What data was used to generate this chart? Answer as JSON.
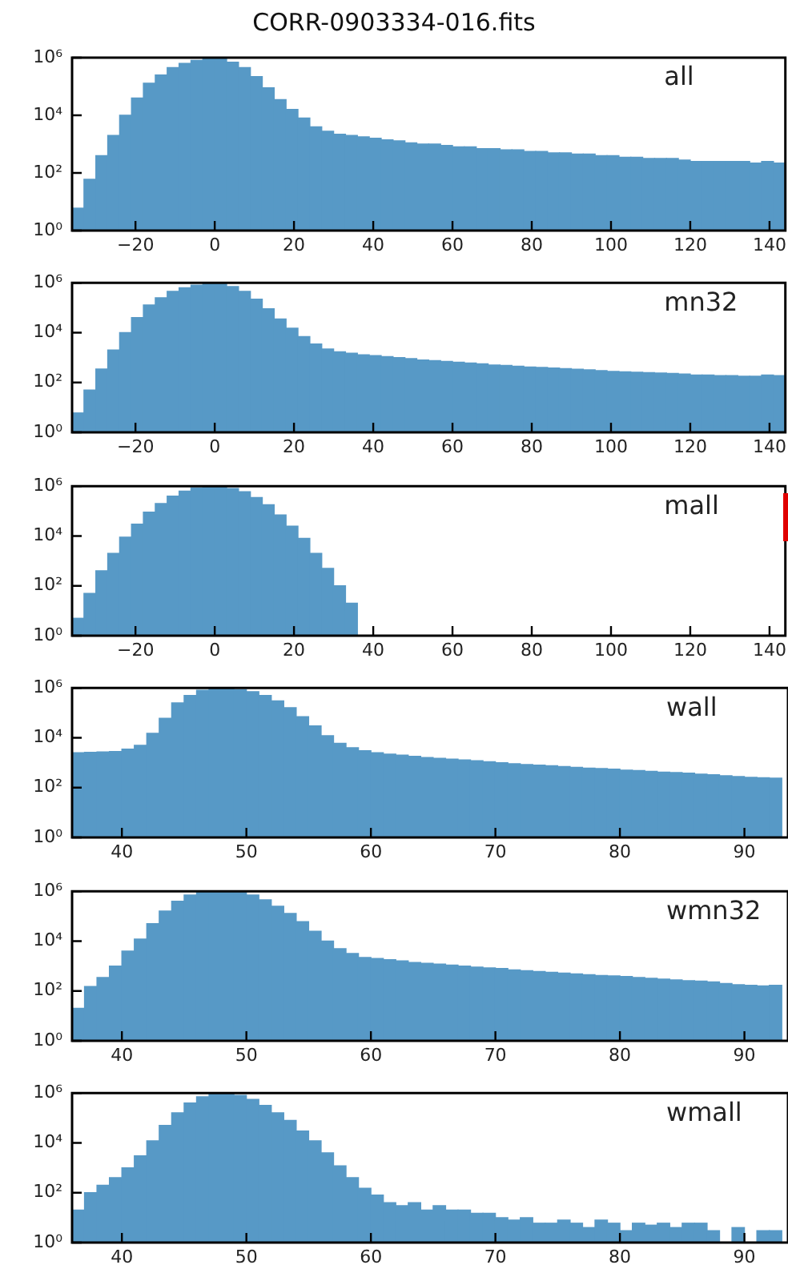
{
  "chart_data": [
    {
      "type": "histogram",
      "title": "CORR-0903334-016.fits",
      "annotations": [
        "all"
      ],
      "color": "#5799c6",
      "log": "y",
      "bins": [
        -36,
        -33,
        -30,
        -27,
        -24,
        -21,
        -18,
        -15,
        -12,
        -9,
        -6,
        -3,
        0,
        3,
        6,
        9,
        12,
        15,
        18,
        21,
        24,
        27,
        30,
        33,
        36,
        39,
        42,
        45,
        48,
        51,
        54,
        57,
        60,
        63,
        66,
        69,
        72,
        75,
        78,
        81,
        84,
        87,
        90,
        93,
        96,
        99,
        102,
        105,
        108,
        111,
        114,
        117,
        120,
        123,
        126,
        129,
        132,
        135,
        138,
        141,
        144
      ],
      "values": [
        6,
        60,
        400,
        2000,
        10000,
        40000,
        130000,
        250000,
        450000,
        630000,
        800000,
        950000,
        900000,
        700000,
        450000,
        220000,
        90000,
        35000,
        16000,
        8000,
        4000,
        2800,
        2200,
        2000,
        1800,
        1600,
        1400,
        1300,
        1100,
        1000,
        1000,
        900,
        800,
        800,
        700,
        700,
        630,
        630,
        560,
        560,
        500,
        500,
        450,
        450,
        400,
        400,
        350,
        350,
        320,
        320,
        320,
        280,
        250,
        250,
        250,
        250,
        250,
        220,
        250,
        220
      ],
      "xlim": [
        -36,
        144
      ],
      "xticks": [
        -20,
        0,
        20,
        40,
        60,
        80,
        100,
        120,
        140
      ],
      "ylim": [
        1,
        1000000
      ],
      "yticks": [
        {
          "value": 1,
          "label": "10⁰"
        },
        {
          "value": 100,
          "label": "10²"
        },
        {
          "value": 10000,
          "label": "10⁴"
        },
        {
          "value": 1000000,
          "label": "10⁶"
        }
      ]
    },
    {
      "type": "histogram",
      "annotations": [
        "mn32"
      ],
      "color": "#5799c6",
      "log": "y",
      "bins": [
        -36,
        -33,
        -30,
        -27,
        -24,
        -21,
        -18,
        -15,
        -12,
        -9,
        -6,
        -3,
        0,
        3,
        6,
        9,
        12,
        15,
        18,
        21,
        24,
        27,
        30,
        33,
        36,
        39,
        42,
        45,
        48,
        51,
        54,
        57,
        60,
        63,
        66,
        69,
        72,
        75,
        78,
        81,
        84,
        87,
        90,
        93,
        96,
        99,
        102,
        105,
        108,
        111,
        114,
        117,
        120,
        123,
        126,
        129,
        132,
        135,
        138,
        141,
        144
      ],
      "values": [
        6,
        50,
        350,
        2000,
        10000,
        40000,
        130000,
        250000,
        450000,
        630000,
        800000,
        950000,
        900000,
        700000,
        450000,
        220000,
        90000,
        35000,
        15000,
        7000,
        3500,
        2200,
        1700,
        1500,
        1300,
        1200,
        1100,
        1000,
        900,
        800,
        750,
        700,
        650,
        600,
        560,
        500,
        480,
        450,
        420,
        400,
        380,
        360,
        340,
        320,
        300,
        280,
        270,
        260,
        250,
        240,
        230,
        220,
        200,
        200,
        190,
        190,
        180,
        180,
        200,
        190
      ],
      "xlim": [
        -36,
        144
      ],
      "xticks": [
        -20,
        0,
        20,
        40,
        60,
        80,
        100,
        120,
        140
      ],
      "ylim": [
        1,
        1000000
      ],
      "yticks": [
        {
          "value": 1,
          "label": "10⁰"
        },
        {
          "value": 100,
          "label": "10²"
        },
        {
          "value": 10000,
          "label": "10⁴"
        },
        {
          "value": 1000000,
          "label": "10⁶"
        }
      ]
    },
    {
      "type": "histogram",
      "annotations": [
        "mall"
      ],
      "color": "#5799c6",
      "log": "y",
      "bins": [
        -36,
        -33,
        -30,
        -27,
        -24,
        -21,
        -18,
        -15,
        -12,
        -9,
        -6,
        -3,
        0,
        3,
        6,
        9,
        12,
        15,
        18,
        21,
        24,
        27,
        30,
        33,
        36,
        39,
        42,
        45,
        48,
        51,
        54,
        57,
        60,
        63,
        66,
        69,
        72,
        75,
        78,
        81,
        84,
        87,
        90,
        93,
        96,
        99,
        102,
        105,
        108,
        111,
        114,
        117,
        120,
        123,
        126,
        129,
        132,
        135,
        138,
        141,
        144
      ],
      "values": [
        5,
        50,
        400,
        2000,
        9000,
        30000,
        90000,
        200000,
        400000,
        630000,
        850000,
        950000,
        950000,
        800000,
        600000,
        350000,
        180000,
        70000,
        25000,
        8000,
        2000,
        500,
        100,
        20,
        null,
        null,
        null,
        null,
        null,
        null,
        null,
        null,
        null,
        null,
        null,
        null,
        null,
        null,
        null,
        null,
        null,
        null,
        null,
        null,
        null,
        null,
        null,
        null,
        null,
        null,
        null,
        null,
        null,
        null,
        null,
        null,
        null,
        null,
        null,
        null
      ],
      "xlim": [
        -36,
        144
      ],
      "xticks": [
        -20,
        0,
        20,
        40,
        60,
        80,
        100,
        120,
        140
      ],
      "ylim": [
        1,
        1000000
      ],
      "yticks": [
        {
          "value": 1,
          "label": "10⁰"
        },
        {
          "value": 100,
          "label": "10²"
        },
        {
          "value": 10000,
          "label": "10⁴"
        },
        {
          "value": 1000000,
          "label": "10⁶"
        }
      ]
    },
    {
      "type": "histogram",
      "annotations": [
        "wall"
      ],
      "color": "#5799c6",
      "log": "y",
      "bins": [
        36,
        37,
        38,
        39,
        40,
        41,
        42,
        43,
        44,
        45,
        46,
        47,
        48,
        49,
        50,
        51,
        52,
        53,
        54,
        55,
        56,
        57,
        58,
        59,
        60,
        61,
        62,
        63,
        64,
        65,
        66,
        67,
        68,
        69,
        70,
        71,
        72,
        73,
        74,
        75,
        76,
        77,
        78,
        79,
        80,
        81,
        82,
        83,
        84,
        85,
        86,
        87,
        88,
        89,
        90,
        91,
        92,
        93
      ],
      "values": [
        2500,
        2600,
        2700,
        2800,
        3500,
        5000,
        15000,
        60000,
        250000,
        500000,
        800000,
        950000,
        950000,
        850000,
        700000,
        500000,
        300000,
        160000,
        70000,
        30000,
        12000,
        6000,
        4000,
        3000,
        2500,
        2200,
        2000,
        1800,
        1600,
        1500,
        1400,
        1300,
        1200,
        1100,
        1000,
        900,
        850,
        800,
        750,
        700,
        650,
        600,
        580,
        550,
        500,
        480,
        450,
        420,
        400,
        380,
        350,
        330,
        300,
        280,
        260,
        250,
        240
      ],
      "xlim": [
        36,
        93.5
      ],
      "xticks": [
        40,
        50,
        60,
        70,
        80,
        90
      ],
      "ylim": [
        1,
        1000000
      ],
      "yticks": [
        {
          "value": 1,
          "label": "10⁰"
        },
        {
          "value": 100,
          "label": "10²"
        },
        {
          "value": 10000,
          "label": "10⁴"
        },
        {
          "value": 1000000,
          "label": "10⁶"
        }
      ]
    },
    {
      "type": "histogram",
      "annotations": [
        "wmn32"
      ],
      "color": "#5799c6",
      "log": "y",
      "bins": [
        36,
        37,
        38,
        39,
        40,
        41,
        42,
        43,
        44,
        45,
        46,
        47,
        48,
        49,
        50,
        51,
        52,
        53,
        54,
        55,
        56,
        57,
        58,
        59,
        60,
        61,
        62,
        63,
        64,
        65,
        66,
        67,
        68,
        69,
        70,
        71,
        72,
        73,
        74,
        75,
        76,
        77,
        78,
        79,
        80,
        81,
        82,
        83,
        84,
        85,
        86,
        87,
        88,
        89,
        90,
        91,
        92,
        93
      ],
      "values": [
        20,
        150,
        350,
        1000,
        4000,
        12000,
        50000,
        160000,
        400000,
        700000,
        900000,
        950000,
        950000,
        900000,
        700000,
        450000,
        250000,
        130000,
        60000,
        25000,
        10000,
        5000,
        3200,
        2200,
        2000,
        1800,
        1600,
        1400,
        1300,
        1200,
        1100,
        1000,
        900,
        850,
        800,
        700,
        650,
        600,
        560,
        520,
        480,
        450,
        420,
        400,
        380,
        350,
        320,
        300,
        280,
        260,
        250,
        230,
        200,
        180,
        170,
        160,
        170
      ],
      "xlim": [
        36,
        93.5
      ],
      "xticks": [
        40,
        50,
        60,
        70,
        80,
        90
      ],
      "ylim": [
        1,
        1000000
      ],
      "yticks": [
        {
          "value": 1,
          "label": "10⁰"
        },
        {
          "value": 100,
          "label": "10²"
        },
        {
          "value": 10000,
          "label": "10⁴"
        },
        {
          "value": 1000000,
          "label": "10⁶"
        }
      ]
    },
    {
      "type": "histogram",
      "annotations": [
        "wmall"
      ],
      "color": "#5799c6",
      "log": "y",
      "bins": [
        36,
        37,
        38,
        39,
        40,
        41,
        42,
        43,
        44,
        45,
        46,
        47,
        48,
        49,
        50,
        51,
        52,
        53,
        54,
        55,
        56,
        57,
        58,
        59,
        60,
        61,
        62,
        63,
        64,
        65,
        66,
        67,
        68,
        69,
        70,
        71,
        72,
        73,
        74,
        75,
        76,
        77,
        78,
        79,
        80,
        81,
        82,
        83,
        84,
        85,
        86,
        87,
        88,
        89,
        90,
        91,
        92,
        93
      ],
      "values": [
        20,
        100,
        200,
        400,
        1000,
        3000,
        12000,
        50000,
        160000,
        400000,
        700000,
        950000,
        950000,
        800000,
        560000,
        320000,
        160000,
        80000,
        30000,
        12000,
        4000,
        1200,
        400,
        150,
        80,
        40,
        30,
        40,
        20,
        30,
        20,
        20,
        15,
        15,
        10,
        8,
        10,
        6,
        6,
        8,
        6,
        4,
        8,
        6,
        3,
        6,
        5,
        6,
        4,
        6,
        6,
        3,
        null,
        4,
        null,
        3,
        3
      ],
      "xlim": [
        36,
        93.5
      ],
      "xticks": [
        40,
        50,
        60,
        70,
        80,
        90
      ],
      "ylim": [
        1,
        1000000
      ],
      "yticks": [
        {
          "value": 1,
          "label": "10⁰"
        },
        {
          "value": 100,
          "label": "10²"
        },
        {
          "value": 10000,
          "label": "10⁴"
        },
        {
          "value": 1000000,
          "label": "10⁶"
        }
      ]
    }
  ]
}
